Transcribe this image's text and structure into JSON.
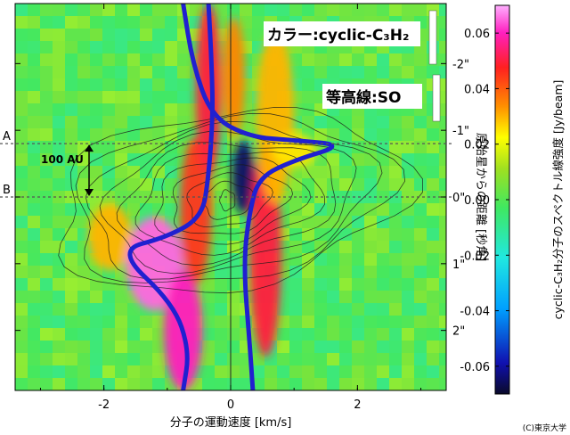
{
  "figure": {
    "title_color": "カラー:cyclic-C₃H₂",
    "title_contour": "等高線:SO",
    "credit": "(C)東京大学",
    "pos_marker_a": "A",
    "pos_marker_b": "B",
    "scale_label": "100 AU"
  },
  "chart_data": {
    "type": "heatmap",
    "xlabel": "分子の運動速度 [km/s]",
    "ylabel": "原始星からの距離 [秒角]",
    "xlim": [
      -3.4,
      3.4
    ],
    "ylim": [
      2.9,
      -2.9
    ],
    "x_ticks": [
      {
        "value": -2,
        "label": "-2"
      },
      {
        "value": 0,
        "label": "0"
      },
      {
        "value": 2,
        "label": "2"
      }
    ],
    "y_ticks": [
      {
        "value": -2,
        "label": "-2\""
      },
      {
        "value": -1,
        "label": "-1\""
      },
      {
        "value": 0,
        "label": "0\""
      },
      {
        "value": 1,
        "label": "1\""
      },
      {
        "value": 2,
        "label": "2\""
      }
    ],
    "colorbar": {
      "label": "cyclic-C₃H₂分子のスペクトル線強度 [Jy/beam]",
      "range": [
        -0.07,
        0.07
      ],
      "ticks": [
        0.06,
        0.04,
        0.02,
        0.0,
        -0.02,
        -0.04,
        -0.06
      ],
      "tick_labels": [
        "0.06",
        "0.04",
        "0.02",
        "0.00",
        "-0.02",
        "-0.04",
        "-0.06"
      ],
      "colormap": [
        "#0a0a2a",
        "#1010b0",
        "#00a0ff",
        "#20e8e0",
        "#40e860",
        "#a0e020",
        "#ffff00",
        "#ff9000",
        "#ff2020",
        "#ff20c0",
        "#ffb0ff"
      ]
    },
    "background_color": "#40e860",
    "reference_lines": {
      "offset_a": -0.8,
      "offset_b": 0.0
    },
    "scale_bar_offsets": [
      -0.8,
      0.0
    ],
    "blue_curve_color": "#2020d0",
    "blue_curve_points": [
      [
        -0.75,
        -2.9
      ],
      [
        -0.6,
        -2.0
      ],
      [
        -0.3,
        -1.2
      ],
      [
        0.3,
        -0.9
      ],
      [
        1.0,
        -0.85
      ],
      [
        1.8,
        -0.78
      ],
      [
        1.0,
        -0.55
      ],
      [
        0.45,
        -0.3
      ],
      [
        0.3,
        0.2
      ],
      [
        0.2,
        1.0
      ],
      [
        0.3,
        2.2
      ],
      [
        0.35,
        2.9
      ]
    ],
    "blue_curve_points_2": [
      [
        -0.75,
        2.9
      ],
      [
        -0.65,
        2.3
      ],
      [
        -0.9,
        1.6
      ],
      [
        -1.8,
        0.8
      ],
      [
        -1.0,
        0.6
      ],
      [
        -0.45,
        0.3
      ],
      [
        -0.35,
        -0.3
      ],
      [
        -0.28,
        -1.2
      ],
      [
        -0.3,
        -2.0
      ],
      [
        -0.35,
        -2.9
      ]
    ],
    "emission_bands": [
      {
        "x": -1.9,
        "y": 0.6,
        "value": 0.03,
        "rx": 0.35,
        "ry": 0.5
      },
      {
        "x": -1.2,
        "y": 1.0,
        "value": 0.065,
        "rx": 0.45,
        "ry": 0.7
      },
      {
        "x": -0.75,
        "y": 2.0,
        "value": 0.06,
        "rx": 0.3,
        "ry": 0.9
      },
      {
        "x": -0.55,
        "y": 0.2,
        "value": 0.045,
        "rx": 0.25,
        "ry": 1.1
      },
      {
        "x": -0.35,
        "y": -1.6,
        "value": 0.05,
        "rx": 0.2,
        "ry": 1.3
      },
      {
        "x": 0.2,
        "y": -0.3,
        "value": -0.065,
        "rx": 0.18,
        "ry": 0.55
      },
      {
        "x": 0.55,
        "y": 0.8,
        "value": 0.05,
        "rx": 0.25,
        "ry": 1.6
      },
      {
        "x": 0.7,
        "y": -1.2,
        "value": 0.03,
        "rx": 0.3,
        "ry": 1.3
      },
      {
        "x": 1.0,
        "y": -0.7,
        "value": 0.025,
        "rx": 0.35,
        "ry": 0.25
      },
      {
        "x": 0.05,
        "y": -1.8,
        "value": 0.035,
        "rx": 0.18,
        "ry": 0.9
      }
    ],
    "contour_levels": 11
  }
}
